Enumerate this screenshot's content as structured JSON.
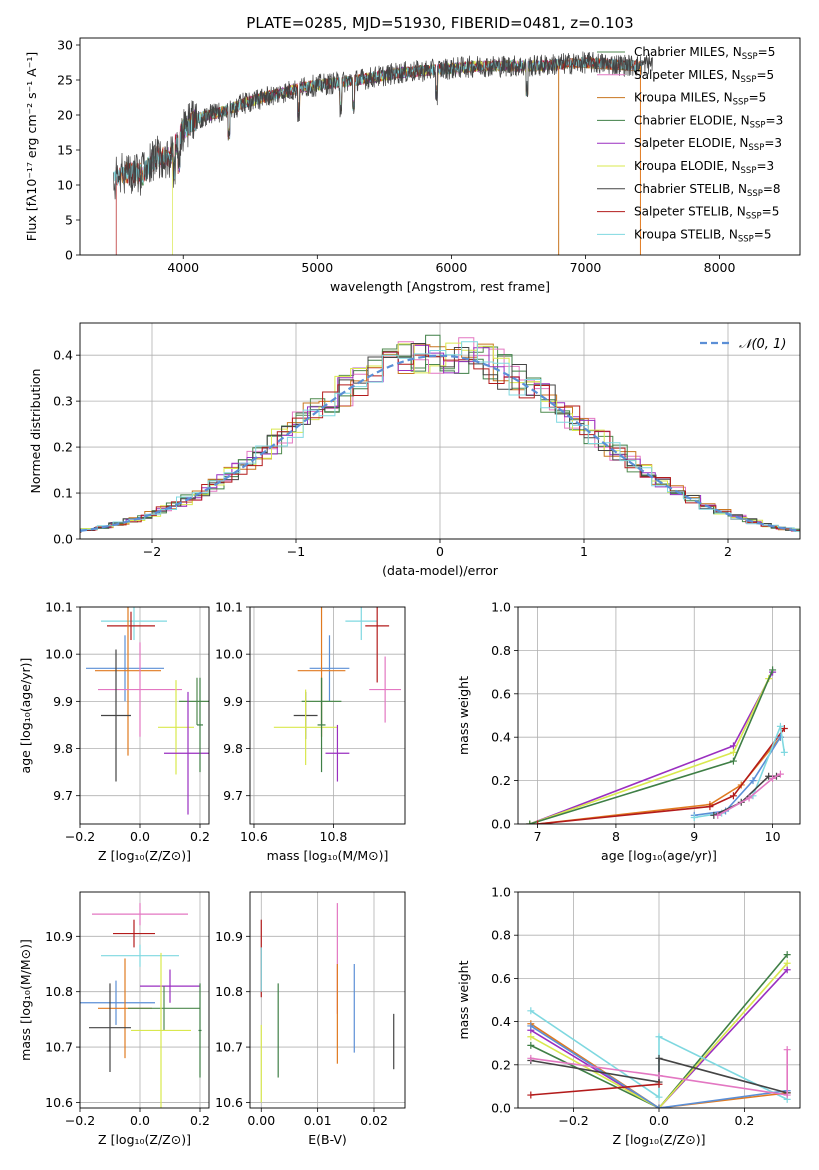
{
  "figure": {
    "title": "PLATE=0285, MJD=51930, FIBERID=0481, z=0.103"
  },
  "models": [
    {
      "key": "chabrier_miles",
      "label_main": "Chabrier MILES, N",
      "label_sub": "SSP",
      "label_tail": "=5",
      "color": "#4f8a4f"
    },
    {
      "key": "salpeter_miles",
      "label_main": "Salpeter MILES, N",
      "label_sub": "SSP",
      "label_tail": "=5",
      "color": "#e377c2"
    },
    {
      "key": "kroupa_miles",
      "label_main": "Kroupa MILES, N",
      "label_sub": "SSP",
      "label_tail": "=5",
      "color": "#c8751f"
    },
    {
      "key": "chabrier_elodie",
      "label_main": "Chabrier ELODIE, N",
      "label_sub": "SSP",
      "label_tail": "=3",
      "color": "#3f7f46"
    },
    {
      "key": "salpeter_elodie",
      "label_main": "Salpeter ELODIE, N",
      "label_sub": "SSP",
      "label_tail": "=3",
      "color": "#9a2fc0"
    },
    {
      "key": "kroupa_elodie",
      "label_main": "Kroupa ELODIE, N",
      "label_sub": "SSP",
      "label_tail": "=3",
      "color": "#d9e84e"
    },
    {
      "key": "chabrier_stelib",
      "label_main": "Chabrier STELIB, N",
      "label_sub": "SSP",
      "label_tail": "=8",
      "color": "#444444"
    },
    {
      "key": "salpeter_stelib",
      "label_main": "Salpeter STELIB, N",
      "label_sub": "SSP",
      "label_tail": "=5",
      "color": "#b31b1b"
    },
    {
      "key": "kroupa_stelib",
      "label_main": "Kroupa STELIB, N",
      "label_sub": "SSP",
      "label_tail": "=5",
      "color": "#7fd8e0"
    }
  ],
  "extra_colors": {
    "blue": "#5b8fd6",
    "orange": "#e07a20",
    "gray": "#7f7f7f"
  },
  "chart_data": [
    {
      "id": "spectrum",
      "type": "line",
      "xlabel": "wavelength [Angstrom, rest frame]",
      "ylabel": "Flux [fλ10⁻¹⁷ erg cm⁻² s⁻¹ A⁻¹]",
      "xlim": [
        3230,
        8600
      ],
      "ylim": [
        0,
        31
      ],
      "xticks": [
        4000,
        5000,
        6000,
        7000,
        8000
      ],
      "yticks": [
        0,
        5,
        10,
        15,
        20,
        25,
        30
      ],
      "continuum": [
        [
          3480,
          11
        ],
        [
          3600,
          12
        ],
        [
          3700,
          11.5
        ],
        [
          3800,
          14
        ],
        [
          3900,
          14
        ],
        [
          4000,
          18
        ],
        [
          4100,
          19.5
        ],
        [
          4300,
          20.5
        ],
        [
          4500,
          22
        ],
        [
          4700,
          23
        ],
        [
          4900,
          24
        ],
        [
          5100,
          24.5
        ],
        [
          5300,
          25
        ],
        [
          5600,
          26
        ],
        [
          5900,
          26.5
        ],
        [
          6200,
          27
        ],
        [
          6600,
          27
        ],
        [
          7000,
          27.5
        ],
        [
          7400,
          27
        ],
        [
          7500,
          27.5
        ]
      ],
      "legend_position": "upper right"
    },
    {
      "id": "residuals",
      "type": "histogram",
      "xlabel": "(data-model)/error",
      "ylabel": "Normed distribution",
      "xlim": [
        -2.5,
        2.5
      ],
      "ylim": [
        0,
        0.47
      ],
      "xticks": [
        -2,
        -1,
        0,
        1,
        2
      ],
      "yticks": [
        0.0,
        0.1,
        0.2,
        0.3,
        0.4
      ],
      "grid": true,
      "reference_label": "𝒩(0, 1)",
      "legend_position": "upper right"
    },
    {
      "id": "age_vs_z",
      "type": "scatter",
      "xlabel": "Z [log₁₀(Z/Z⊙)]",
      "ylabel": "age  [log₁₀(age/yr)]",
      "xlim": [
        -0.2,
        0.23
      ],
      "ylim": [
        9.64,
        10.1
      ],
      "xticks": [
        -0.2,
        0.0,
        0.2
      ],
      "yticks": [
        9.7,
        9.8,
        9.9,
        10.0,
        10.1
      ],
      "grid": true,
      "points": [
        {
          "c": "kroupa_stelib",
          "x": -0.02,
          "xerr": 0.11,
          "y": 10.07,
          "yerr": 0.04
        },
        {
          "c": "salpeter_stelib",
          "x": -0.03,
          "xerr": 0.08,
          "y": 10.06,
          "yerr": 0.03
        },
        {
          "c": "blue",
          "x": -0.05,
          "xerr": 0.13,
          "y": 9.97,
          "yerr": 0.07
        },
        {
          "c": "orange",
          "x": -0.04,
          "xerr": 0.11,
          "y": 9.965,
          "yerr": 0.18
        },
        {
          "c": "salpeter_miles",
          "x": 0.0,
          "xerr": 0.14,
          "y": 9.925,
          "yerr": 0.1
        },
        {
          "c": "chabrier_miles",
          "x": 0.19,
          "xerr": 0.06,
          "y": 9.9,
          "yerr": 0.05
        },
        {
          "c": "chabrier_stelib",
          "x": -0.08,
          "xerr": 0.05,
          "y": 9.87,
          "yerr": 0.14
        },
        {
          "c": "kroupa_elodie",
          "x": 0.12,
          "xerr": 0.06,
          "y": 9.845,
          "yerr": 0.1
        },
        {
          "c": "salpeter_elodie",
          "x": 0.16,
          "xerr": 0.08,
          "y": 9.79,
          "yerr": 0.13
        },
        {
          "c": "chabrier_elodie",
          "x": 0.2,
          "xerr": 0.01,
          "y": 9.85,
          "yerr": 0.1
        }
      ]
    },
    {
      "id": "age_vs_mass",
      "type": "scatter",
      "xlabel": "mass [log₁₀(M/M⊙)]",
      "xlim": [
        10.59,
        10.98
      ],
      "ylim": [
        9.64,
        10.1
      ],
      "xticks": [
        10.6,
        10.8
      ],
      "yticks": [
        9.7,
        9.8,
        9.9,
        10.0,
        10.1
      ],
      "grid": true,
      "points": [
        {
          "c": "kroupa_stelib",
          "x": 10.87,
          "xerr": 0.04,
          "y": 10.07,
          "yerr": 0.04
        },
        {
          "c": "salpeter_stelib",
          "x": 10.91,
          "xerr": 0.03,
          "y": 10.06,
          "yerr": 0.12
        },
        {
          "c": "blue",
          "x": 10.79,
          "xerr": 0.05,
          "y": 9.97,
          "yerr": 0.07
        },
        {
          "c": "orange",
          "x": 10.77,
          "xerr": 0.06,
          "y": 9.965,
          "yerr": 0.14
        },
        {
          "c": "salpeter_miles",
          "x": 10.93,
          "xerr": 0.04,
          "y": 9.925,
          "yerr": 0.07
        },
        {
          "c": "chabrier_miles",
          "x": 10.77,
          "xerr": 0.05,
          "y": 9.9,
          "yerr": 0.05
        },
        {
          "c": "chabrier_stelib",
          "x": 10.73,
          "xerr": 0.03,
          "y": 9.87,
          "yerr": 0.05
        },
        {
          "c": "kroupa_elodie",
          "x": 10.73,
          "xerr": 0.08,
          "y": 9.845,
          "yerr": 0.08
        },
        {
          "c": "salpeter_elodie",
          "x": 10.81,
          "xerr": 0.03,
          "y": 9.79,
          "yerr": 0.06
        },
        {
          "c": "chabrier_elodie",
          "x": 10.77,
          "xerr": 0.01,
          "y": 9.85,
          "yerr": 0.1
        }
      ]
    },
    {
      "id": "weight_vs_age",
      "type": "line",
      "xlabel": "age  [log₁₀(age/yr)]",
      "ylabel": "mass weight",
      "xlim": [
        6.75,
        10.35
      ],
      "ylim": [
        0,
        1
      ],
      "xticks": [
        7,
        8,
        9,
        10
      ],
      "yticks": [
        0.0,
        0.2,
        0.4,
        0.6,
        0.8,
        1.0
      ],
      "grid": true,
      "series": [
        {
          "c": "salpeter_elodie",
          "x": [
            6.9,
            9.5,
            10.0
          ],
          "y": [
            0.0,
            0.36,
            0.7
          ]
        },
        {
          "c": "kroupa_elodie",
          "x": [
            6.9,
            9.5,
            9.95
          ],
          "y": [
            0.0,
            0.33,
            0.67
          ]
        },
        {
          "c": "chabrier_elodie",
          "x": [
            6.9,
            9.5,
            10.0
          ],
          "y": [
            0.0,
            0.29,
            0.71
          ]
        },
        {
          "c": "orange",
          "x": [
            7.0,
            9.2,
            9.6,
            10.1
          ],
          "y": [
            0.0,
            0.09,
            0.18,
            0.4
          ]
        },
        {
          "c": "salpeter_stelib",
          "x": [
            7.0,
            9.2,
            9.5,
            10.15
          ],
          "y": [
            0.0,
            0.08,
            0.13,
            0.44
          ]
        },
        {
          "c": "blue",
          "x": [
            9.0,
            9.4,
            9.75,
            10.1
          ],
          "y": [
            0.04,
            0.06,
            0.2,
            0.4
          ]
        },
        {
          "c": "kroupa_stelib",
          "x": [
            9.0,
            9.35,
            9.75,
            10.1,
            10.15
          ],
          "y": [
            0.03,
            0.05,
            0.13,
            0.45,
            0.33
          ]
        },
        {
          "c": "chabrier_stelib",
          "x": [
            9.25,
            9.6,
            9.95,
            10.05
          ],
          "y": [
            0.04,
            0.1,
            0.22,
            0.22
          ]
        },
        {
          "c": "salpeter_miles",
          "x": [
            9.3,
            9.7,
            10.0,
            10.1
          ],
          "y": [
            0.04,
            0.12,
            0.21,
            0.23
          ]
        }
      ]
    },
    {
      "id": "mass_vs_z",
      "type": "scatter",
      "xlabel": "Z [log₁₀(Z/Z⊙)]",
      "ylabel": "mass [log₁₀(M/M⊙)]",
      "xlim": [
        -0.2,
        0.23
      ],
      "ylim": [
        10.59,
        10.98
      ],
      "xticks": [
        -0.2,
        0.0,
        0.2
      ],
      "yticks": [
        10.6,
        10.7,
        10.8,
        10.9
      ],
      "grid": true,
      "points": [
        {
          "c": "salpeter_miles",
          "x": 0.0,
          "xerr": 0.16,
          "y": 10.94,
          "yerr": 0.02
        },
        {
          "c": "salpeter_stelib",
          "x": -0.02,
          "xerr": 0.07,
          "y": 10.905,
          "yerr": 0.025
        },
        {
          "c": "kroupa_stelib",
          "x": 0.0,
          "xerr": 0.13,
          "y": 10.865,
          "yerr": 0.02
        },
        {
          "c": "salpeter_elodie",
          "x": 0.1,
          "xerr": 0.1,
          "y": 10.81,
          "yerr": 0.03
        },
        {
          "c": "blue",
          "x": -0.08,
          "xerr": 0.13,
          "y": 10.78,
          "yerr": 0.04
        },
        {
          "c": "orange",
          "x": -0.05,
          "xerr": 0.09,
          "y": 10.77,
          "yerr": 0.09
        },
        {
          "c": "chabrier_miles",
          "x": 0.08,
          "xerr": 0.12,
          "y": 10.77,
          "yerr": 0.04
        },
        {
          "c": "chabrier_stelib",
          "x": -0.1,
          "xerr": 0.07,
          "y": 10.735,
          "yerr": 0.08
        },
        {
          "c": "kroupa_elodie",
          "x": 0.07,
          "xerr": 0.1,
          "y": 10.73,
          "yerr": 0.14
        },
        {
          "c": "chabrier_elodie",
          "x": 0.2,
          "xerr": 0.005,
          "y": 10.73,
          "yerr": 0.085
        }
      ]
    },
    {
      "id": "mass_vs_ebv",
      "type": "scatter",
      "xlabel": "E(B-V)",
      "xlim": [
        -0.002,
        0.0255
      ],
      "ylim": [
        10.59,
        10.98
      ],
      "xticks": [
        0.0,
        0.01,
        0.02
      ],
      "yticks": [
        10.6,
        10.7,
        10.8,
        10.9
      ],
      "grid": true,
      "points": [
        {
          "c": "salpeter_stelib",
          "x": 0.0,
          "y": 10.86,
          "yerr": 0.07
        },
        {
          "c": "kroupa_stelib",
          "x": 0.0,
          "y": 10.84,
          "yerr": 0.04
        },
        {
          "c": "kroupa_elodie",
          "x": 0.0,
          "y": 10.67,
          "yerr": 0.07
        },
        {
          "c": "chabrier_elodie",
          "x": 0.003,
          "y": 10.73,
          "yerr": 0.085
        },
        {
          "c": "salpeter_miles",
          "x": 0.0135,
          "y": 10.86,
          "yerr": 0.1
        },
        {
          "c": "orange",
          "x": 0.0135,
          "y": 10.76,
          "yerr": 0.09
        },
        {
          "c": "blue",
          "x": 0.0165,
          "y": 10.77,
          "yerr": 0.08
        },
        {
          "c": "chabrier_stelib",
          "x": 0.0235,
          "y": 10.71,
          "yerr": 0.05
        }
      ]
    },
    {
      "id": "weight_vs_z",
      "type": "line",
      "xlabel": "Z [log₁₀(Z/Z⊙)]",
      "ylabel": "mass weight",
      "xlim": [
        -0.33,
        0.33
      ],
      "ylim": [
        0,
        1
      ],
      "xticks": [
        -0.2,
        0.0,
        0.2
      ],
      "yticks": [
        0.0,
        0.2,
        0.4,
        0.6,
        0.8,
        1.0
      ],
      "grid": true,
      "series": [
        {
          "c": "chabrier_elodie",
          "x": [
            -0.3,
            0.0,
            0.3
          ],
          "y": [
            0.29,
            0.0,
            0.71
          ]
        },
        {
          "c": "salpeter_elodie",
          "x": [
            -0.3,
            0.0,
            0.3
          ],
          "y": [
            0.36,
            0.0,
            0.64
          ]
        },
        {
          "c": "kroupa_elodie",
          "x": [
            -0.3,
            0.0,
            0.3
          ],
          "y": [
            0.33,
            0.0,
            0.67
          ]
        },
        {
          "c": "kroupa_stelib",
          "x": [
            -0.3,
            0.0,
            0.0,
            0.3
          ],
          "y": [
            0.45,
            0.05,
            0.33,
            0.04
          ]
        },
        {
          "c": "orange",
          "x": [
            -0.3,
            0.0,
            0.3
          ],
          "y": [
            0.39,
            0.0,
            0.07
          ]
        },
        {
          "c": "blue",
          "x": [
            -0.3,
            0.0,
            0.3
          ],
          "y": [
            0.38,
            0.0,
            0.08
          ]
        },
        {
          "c": "chabrier_stelib",
          "x": [
            -0.3,
            0.0,
            0.0,
            0.3
          ],
          "y": [
            0.22,
            0.12,
            0.23,
            0.07
          ]
        },
        {
          "c": "salpeter_miles",
          "x": [
            -0.3,
            0.0,
            0.3,
            0.3
          ],
          "y": [
            0.23,
            0.15,
            0.06,
            0.27
          ]
        },
        {
          "c": "salpeter_stelib",
          "x": [
            -0.3,
            0.0
          ],
          "y": [
            0.06,
            0.11
          ]
        }
      ]
    }
  ]
}
